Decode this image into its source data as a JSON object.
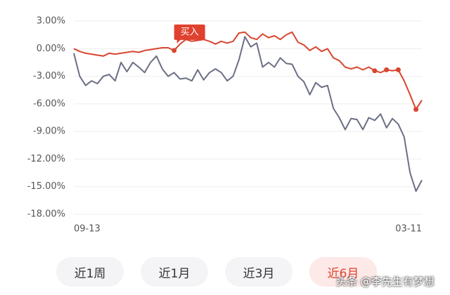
{
  "chart_data": {
    "type": "line",
    "categories": [
      "09-13",
      null,
      null,
      null,
      null,
      null,
      null,
      null,
      null,
      null,
      null,
      null,
      null,
      null,
      null,
      null,
      null,
      null,
      null,
      null,
      null,
      null,
      null,
      null,
      null,
      null,
      null,
      null,
      null,
      null,
      null,
      null,
      null,
      null,
      null,
      null,
      null,
      null,
      null,
      null,
      null,
      null,
      null,
      null,
      null,
      null,
      null,
      null,
      null,
      null,
      null,
      null,
      null,
      null,
      null,
      null,
      null,
      null,
      null,
      "03-11"
    ],
    "series": [
      {
        "color": "#6b6f85",
        "values": [
          -0.5,
          -3,
          -4,
          -3.5,
          -3.8,
          -3,
          -2.8,
          -3.5,
          -1.5,
          -2.5,
          -1.5,
          -2,
          -2.6,
          -1.5,
          -0.8,
          -2.2,
          -3,
          -2.6,
          -3.3,
          -3.2,
          -3.5,
          -2.3,
          -3.4,
          -2.6,
          -2.2,
          -2.6,
          -3.5,
          -3,
          -1.2,
          1.3,
          0.2,
          0.6,
          -2,
          -1.5,
          -2,
          -1,
          -1.6,
          -1.7,
          -3,
          -3.6,
          -5,
          -3.7,
          -4.2,
          -4,
          -6.5,
          -7.5,
          -8.8,
          -7.6,
          -7.7,
          -8.8,
          -7.5,
          -7.8,
          -7.1,
          -8.6,
          -7.6,
          -8.2,
          -9.6,
          -13.5,
          -15.5,
          -14.3
        ]
      },
      {
        "color": "#d9452f",
        "values": [
          0,
          -0.3,
          -0.5,
          -0.6,
          -0.7,
          -0.8,
          -0.5,
          -0.6,
          -0.5,
          -0.4,
          -0.3,
          -0.4,
          -0.2,
          -0.1,
          0,
          0.1,
          0.1,
          -0.2,
          0.5,
          1,
          0.8,
          0.9,
          1,
          0.8,
          0.5,
          0.8,
          0.6,
          0.8,
          1.7,
          1.8,
          1.2,
          1,
          1.6,
          1.2,
          1.4,
          1,
          1.5,
          1.8,
          0.7,
          0.4,
          -0.2,
          0.2,
          -0.3,
          0,
          -1,
          -1.3,
          -2,
          -2.2,
          -2,
          -2.3,
          -2,
          -2.4,
          -2.6,
          -2.3,
          -2.4,
          -2.3,
          -3.5,
          -5,
          -6.6,
          -5.6
        ],
        "highlight_indices": [
          17,
          51,
          53,
          55,
          58
        ]
      }
    ],
    "annotation": {
      "text": "买入",
      "series": 1,
      "index": 17
    },
    "ylim": [
      -18,
      3
    ],
    "yticks": [
      {
        "value": 3,
        "label": "3.00%"
      },
      {
        "value": 0,
        "label": "0.00%"
      },
      {
        "value": -3,
        "label": "-3.00%"
      },
      {
        "value": -6,
        "label": "-6.00%"
      },
      {
        "value": -9,
        "label": "-9.00%"
      },
      {
        "value": -12,
        "label": "-12.00%"
      },
      {
        "value": -15,
        "label": "-15.00%"
      },
      {
        "value": -18,
        "label": "-18.00%"
      }
    ],
    "grid": true
  },
  "tabs": [
    {
      "label": "近1周",
      "selected": false
    },
    {
      "label": "近1月",
      "selected": false
    },
    {
      "label": "近3月",
      "selected": false
    },
    {
      "label": "近6月",
      "selected": true
    }
  ],
  "watermark": "头条 @李先生有梦想"
}
